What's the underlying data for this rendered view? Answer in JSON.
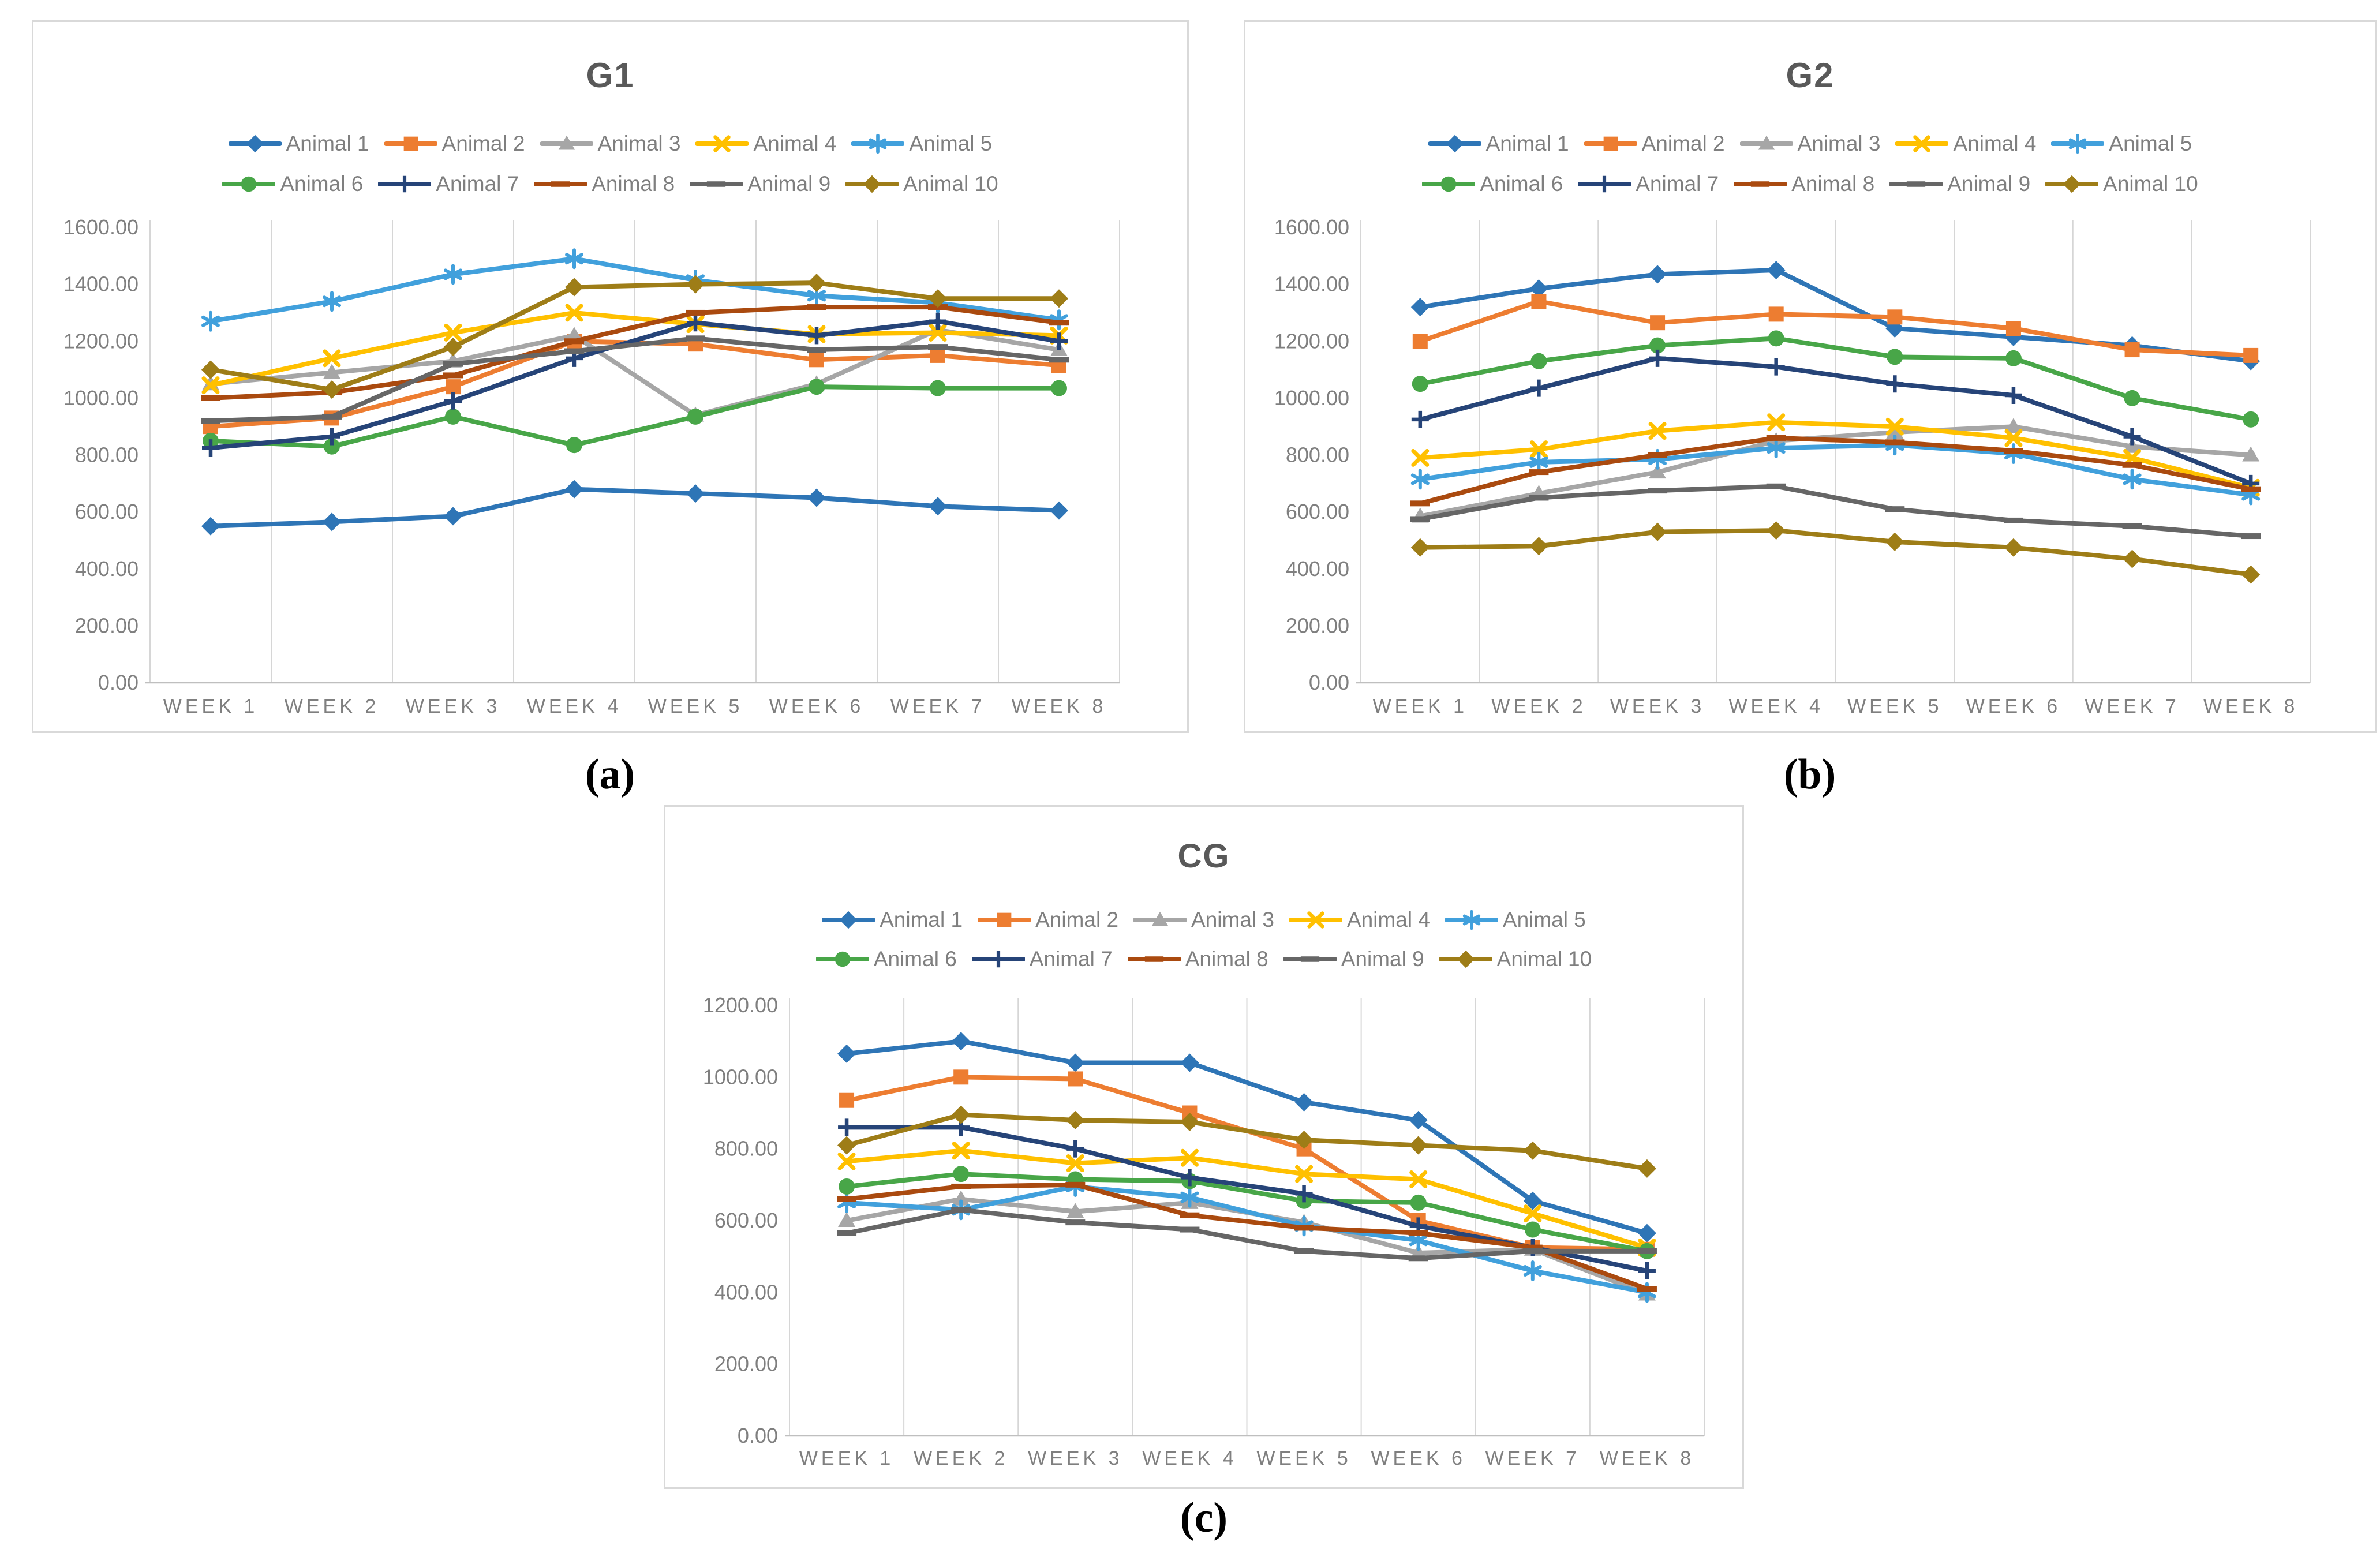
{
  "figure": {
    "background": "#ffffff",
    "border_color": "#d9d9d9",
    "gridline_color": "#d6d6d6",
    "axis_line_color": "#bfbfbf",
    "axis_text_color": "#7f7f7f",
    "title_text_color": "#595959"
  },
  "chart_data": [
    {
      "type": "line",
      "title": "G1",
      "caption": "(a)",
      "legend_position": "top",
      "grid": "vertical-only",
      "ylim": [
        0,
        1600
      ],
      "y_ticks": [
        "0.00",
        "200.00",
        "400.00",
        "600.00",
        "800.00",
        "1000.00",
        "1200.00",
        "1400.00",
        "1600.00"
      ],
      "categories": [
        "WEEK 1",
        "WEEK 2",
        "WEEK 3",
        "WEEK 4",
        "WEEK 5",
        "WEEK 6",
        "WEEK 7",
        "WEEK 8"
      ],
      "series": [
        {
          "name": "Animal 1",
          "color": "#2e75b6",
          "marker": "diamond",
          "values": [
            550,
            565,
            585,
            680,
            665,
            650,
            620,
            605
          ]
        },
        {
          "name": "Animal 2",
          "color": "#ed7d31",
          "marker": "square",
          "values": [
            900,
            930,
            1040,
            1200,
            1190,
            1135,
            1150,
            1115
          ]
        },
        {
          "name": "Animal 3",
          "color": "#a6a6a6",
          "marker": "triangle",
          "values": [
            1050,
            1090,
            1130,
            1220,
            940,
            1050,
            1240,
            1170
          ]
        },
        {
          "name": "Animal 4",
          "color": "#ffc000",
          "marker": "x",
          "values": [
            1045,
            1140,
            1230,
            1300,
            1260,
            1225,
            1230,
            1220
          ]
        },
        {
          "name": "Animal 5",
          "color": "#41a0dc",
          "marker": "asterisk",
          "values": [
            1270,
            1340,
            1435,
            1490,
            1415,
            1360,
            1335,
            1275
          ]
        },
        {
          "name": "Animal 6",
          "color": "#48a648",
          "marker": "circle",
          "values": [
            850,
            830,
            935,
            835,
            935,
            1040,
            1035,
            1035
          ]
        },
        {
          "name": "Animal 7",
          "color": "#264478",
          "marker": "plus",
          "values": [
            825,
            865,
            990,
            1140,
            1265,
            1220,
            1270,
            1200
          ]
        },
        {
          "name": "Animal 8",
          "color": "#aa4a0f",
          "marker": "dash",
          "values": [
            1000,
            1020,
            1080,
            1200,
            1300,
            1320,
            1320,
            1265
          ]
        },
        {
          "name": "Animal 9",
          "color": "#666666",
          "marker": "dash",
          "values": [
            920,
            935,
            1120,
            1165,
            1210,
            1170,
            1180,
            1135
          ]
        },
        {
          "name": "Animal 10",
          "color": "#9e7d17",
          "marker": "diamond",
          "values": [
            1100,
            1030,
            1180,
            1390,
            1400,
            1405,
            1350,
            1350
          ]
        }
      ]
    },
    {
      "type": "line",
      "title": "G2",
      "caption": "(b)",
      "legend_position": "top",
      "grid": "vertical-only",
      "ylim": [
        0,
        1600
      ],
      "y_ticks": [
        "0.00",
        "200.00",
        "400.00",
        "600.00",
        "800.00",
        "1000.00",
        "1200.00",
        "1400.00",
        "1600.00"
      ],
      "categories": [
        "WEEK 1",
        "WEEK 2",
        "WEEK 3",
        "WEEK 4",
        "WEEK 5",
        "WEEK 6",
        "WEEK 7",
        "WEEK 8"
      ],
      "series": [
        {
          "name": "Animal 1",
          "color": "#2e75b6",
          "marker": "diamond",
          "values": [
            1320,
            1385,
            1435,
            1450,
            1245,
            1215,
            1185,
            1130
          ]
        },
        {
          "name": "Animal 2",
          "color": "#ed7d31",
          "marker": "square",
          "values": [
            1200,
            1340,
            1265,
            1295,
            1285,
            1245,
            1170,
            1150
          ]
        },
        {
          "name": "Animal 3",
          "color": "#a6a6a6",
          "marker": "triangle",
          "values": [
            585,
            665,
            740,
            850,
            880,
            900,
            830,
            800
          ]
        },
        {
          "name": "Animal 4",
          "color": "#ffc000",
          "marker": "x",
          "values": [
            790,
            820,
            885,
            915,
            900,
            860,
            790,
            685
          ]
        },
        {
          "name": "Animal 5",
          "color": "#41a0dc",
          "marker": "asterisk",
          "values": [
            715,
            775,
            785,
            825,
            835,
            805,
            715,
            660
          ]
        },
        {
          "name": "Animal 6",
          "color": "#48a648",
          "marker": "circle",
          "values": [
            1050,
            1130,
            1185,
            1210,
            1145,
            1140,
            1000,
            925
          ]
        },
        {
          "name": "Animal 7",
          "color": "#264478",
          "marker": "plus",
          "values": [
            925,
            1035,
            1140,
            1110,
            1050,
            1010,
            865,
            700
          ]
        },
        {
          "name": "Animal 8",
          "color": "#aa4a0f",
          "marker": "dash",
          "values": [
            630,
            740,
            800,
            860,
            845,
            815,
            765,
            680
          ]
        },
        {
          "name": "Animal 9",
          "color": "#666666",
          "marker": "dash",
          "values": [
            575,
            650,
            675,
            690,
            610,
            570,
            550,
            515
          ]
        },
        {
          "name": "Animal 10",
          "color": "#9e7d17",
          "marker": "diamond",
          "values": [
            475,
            480,
            530,
            535,
            495,
            475,
            435,
            380
          ]
        }
      ]
    },
    {
      "type": "line",
      "title": "CG",
      "caption": "(c)",
      "legend_position": "top",
      "grid": "vertical-only",
      "ylim": [
        0,
        1200
      ],
      "y_ticks": [
        "0.00",
        "200.00",
        "400.00",
        "600.00",
        "800.00",
        "1000.00",
        "1200.00"
      ],
      "categories": [
        "WEEK 1",
        "WEEK 2",
        "WEEK 3",
        "WEEK 4",
        "WEEK 5",
        "WEEK 6",
        "WEEK 7",
        "WEEK 8"
      ],
      "series": [
        {
          "name": "Animal 1",
          "color": "#2e75b6",
          "marker": "diamond",
          "values": [
            1065,
            1100,
            1040,
            1040,
            930,
            880,
            655,
            565
          ]
        },
        {
          "name": "Animal 2",
          "color": "#ed7d31",
          "marker": "square",
          "values": [
            935,
            1000,
            995,
            900,
            800,
            600,
            525,
            520
          ]
        },
        {
          "name": "Animal 3",
          "color": "#a6a6a6",
          "marker": "triangle",
          "values": [
            600,
            660,
            625,
            650,
            595,
            510,
            520,
            395
          ]
        },
        {
          "name": "Animal 4",
          "color": "#ffc000",
          "marker": "x",
          "values": [
            765,
            795,
            760,
            775,
            730,
            715,
            620,
            525
          ]
        },
        {
          "name": "Animal 5",
          "color": "#41a0dc",
          "marker": "asterisk",
          "values": [
            650,
            630,
            695,
            665,
            585,
            545,
            460,
            400
          ]
        },
        {
          "name": "Animal 6",
          "color": "#48a648",
          "marker": "circle",
          "values": [
            695,
            730,
            715,
            710,
            655,
            650,
            575,
            515
          ]
        },
        {
          "name": "Animal 7",
          "color": "#264478",
          "marker": "plus",
          "values": [
            860,
            860,
            800,
            720,
            675,
            585,
            525,
            460
          ]
        },
        {
          "name": "Animal 8",
          "color": "#aa4a0f",
          "marker": "dash",
          "values": [
            660,
            695,
            700,
            615,
            580,
            565,
            525,
            410
          ]
        },
        {
          "name": "Animal 9",
          "color": "#666666",
          "marker": "dash",
          "values": [
            565,
            630,
            595,
            575,
            515,
            495,
            515,
            515
          ]
        },
        {
          "name": "Animal 10",
          "color": "#9e7d17",
          "marker": "diamond",
          "values": [
            810,
            895,
            880,
            875,
            825,
            810,
            795,
            745
          ]
        }
      ]
    }
  ]
}
